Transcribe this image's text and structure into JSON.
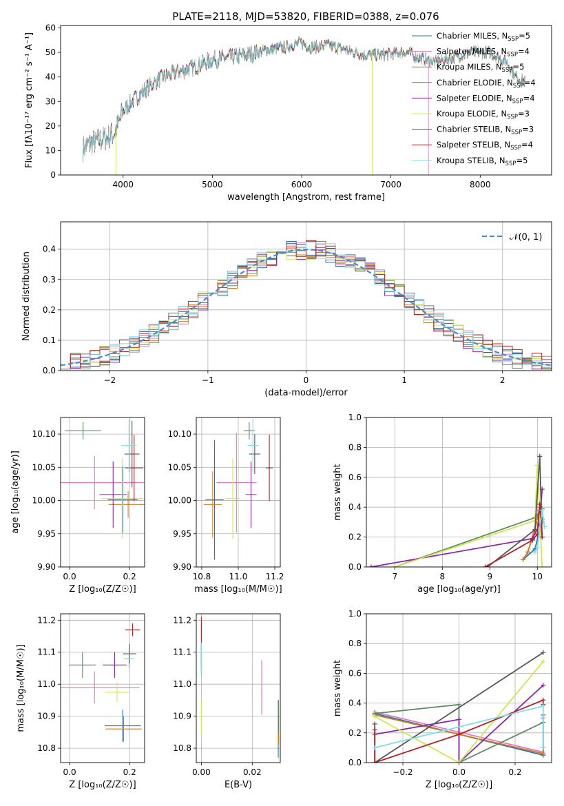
{
  "title": "PLATE=2118, MJD=53820, FIBERID=0388, z=0.076",
  "colors": {
    "chabrier_miles": "#1f77b4",
    "salpeter_miles": "#e377c2",
    "kroupa_miles": "#d47a19",
    "chabrier_elodie": "#5e8a63",
    "salpeter_elodie": "#8e24aa",
    "kroupa_elodie": "#cde84f",
    "chabrier_stelib": "#555555",
    "salpeter_stelib": "#b22222",
    "kroupa_stelib": "#80deea",
    "gauss": "#4a88d0"
  },
  "chart_data": [
    {
      "id": "spectrum",
      "type": "line",
      "title": "PLATE=2118, MJD=53820, FIBERID=0388, z=0.076",
      "xlabel": "wavelength [Angstrom, rest frame]",
      "ylabel": "Flux [f",
      "ylabel_unit": "λ10⁻¹⁷ erg cm⁻² s⁻¹ A⁻¹]",
      "xlim": [
        3300,
        8800
      ],
      "ylim": [
        0,
        61
      ],
      "xticks": [
        "4000",
        "5000",
        "6000",
        "7000",
        "8000"
      ],
      "yticks": [
        "0",
        "10",
        "20",
        "30",
        "40",
        "50",
        "60"
      ],
      "legend_position": "upper-right",
      "legend": [
        {
          "name": "Chabrier MILES, N",
          "sub": "SSP",
          "tail": "=5"
        },
        {
          "name": "Salpeter MILES, N",
          "sub": "SSP",
          "tail": "=4"
        },
        {
          "name": "Kroupa MILES, N",
          "sub": "SSP",
          "tail": "=5"
        },
        {
          "name": "Chabrier ELODIE, N",
          "sub": "SSP",
          "tail": "=4"
        },
        {
          "name": "Salpeter ELODIE, N",
          "sub": "SSP",
          "tail": "=4"
        },
        {
          "name": "Kroupa ELODIE, N",
          "sub": "SSP",
          "tail": "=3"
        },
        {
          "name": "Chabrier STELIB, N",
          "sub": "SSP",
          "tail": "=3"
        },
        {
          "name": "Salpeter STELIB, N",
          "sub": "SSP",
          "tail": "=4"
        },
        {
          "name": "Kroupa STELIB, N",
          "sub": "SSP",
          "tail": "=5"
        }
      ],
      "continuum": {
        "x": [
          3550,
          3650,
          3800,
          3900,
          3950,
          4000,
          4100,
          4250,
          4400,
          4600,
          4800,
          5000,
          5200,
          5400,
          5600,
          5800,
          5900,
          6000,
          6100,
          6300,
          6500,
          6700,
          6900,
          7100,
          7200,
          7300,
          7500,
          7700,
          7900,
          8100,
          8300,
          8400,
          8500
        ],
        "y": [
          11,
          13,
          15,
          17,
          21,
          26,
          30,
          35,
          39,
          42,
          44,
          47,
          48,
          49,
          51,
          52,
          53,
          54,
          52,
          53,
          51,
          49,
          49,
          50,
          50,
          48,
          46,
          48,
          50,
          50,
          46,
          40,
          38
        ]
      }
    },
    {
      "id": "residuals",
      "type": "histogram",
      "xlabel": "(data-model)/error",
      "ylabel": "Normed distribution",
      "xlim": [
        -2.5,
        2.5
      ],
      "ylim": [
        0,
        0.49
      ],
      "xticks": [
        "−2",
        "−1",
        "0",
        "1",
        "2"
      ],
      "yticks": [
        "0.0",
        "0.1",
        "0.2",
        "0.3",
        "0.4"
      ],
      "grid": true,
      "legend_position": "upper-right",
      "reference": {
        "name": "𝒩(0, 1)",
        "type": "normal",
        "mean": 0,
        "sigma": 1
      },
      "bin_width": 0.1
    },
    {
      "id": "age_vs_Z",
      "type": "scatter",
      "xlabel": "Z [log₁₀(Z/Z☉)]",
      "ylabel": "age  [log₁₀(age/yr)]",
      "xlim": [
        -0.03,
        0.25
      ],
      "ylim": [
        9.9,
        10.125
      ],
      "xticks": [
        "0.0",
        "0.2"
      ],
      "yticks": [
        "9.90",
        "9.95",
        "10.00",
        "10.05",
        "10.10"
      ],
      "grid": true,
      "points": [
        {
          "x": 0.177,
          "y": 10.001,
          "xerr": 0.05,
          "yerr": 0.05,
          "color": "chabrier_miles"
        },
        {
          "x": 0.083,
          "y": 10.027,
          "xerr": 0.165,
          "yerr": 0.04,
          "color": "salpeter_miles"
        },
        {
          "x": 0.195,
          "y": 9.994,
          "xerr": 0.065,
          "yerr": 0.02,
          "color": "kroupa_miles"
        },
        {
          "x": 0.045,
          "y": 10.105,
          "xerr": 0.06,
          "yerr": 0.013,
          "color": "chabrier_elodie"
        },
        {
          "x": 0.145,
          "y": 10.009,
          "xerr": 0.045,
          "yerr": 0.05,
          "color": "salpeter_elodie"
        },
        {
          "x": 0.175,
          "y": 10.003,
          "xerr": 0.07,
          "yerr": 0.06,
          "color": "kroupa_elodie"
        },
        {
          "x": 0.208,
          "y": 10.07,
          "xerr": 0.025,
          "yerr": 0.05,
          "color": "chabrier_stelib"
        },
        {
          "x": 0.215,
          "y": 10.049,
          "xerr": 0.03,
          "yerr": 0.05,
          "color": "salpeter_stelib"
        },
        {
          "x": 0.198,
          "y": 10.083,
          "xerr": 0.025,
          "yerr": 0.04,
          "color": "kroupa_stelib"
        }
      ]
    },
    {
      "id": "age_vs_mass",
      "type": "scatter",
      "xlabel": "mass [log₁₀(M/M☉)]",
      "ylabel": "",
      "xlim": [
        10.77,
        11.23
      ],
      "ylim": [
        9.9,
        10.125
      ],
      "xticks": [
        "10.8",
        "11.0",
        "11.2"
      ],
      "yticks": [
        "9.90",
        "9.95",
        "10.00",
        "10.05",
        "10.10"
      ],
      "grid": true,
      "points": [
        {
          "x": 10.87,
          "y": 10.001,
          "xerr": 0.05,
          "yerr": 0.09,
          "color": "chabrier_miles"
        },
        {
          "x": 10.99,
          "y": 10.027,
          "xerr": 0.11,
          "yerr": 0.075,
          "color": "salpeter_miles"
        },
        {
          "x": 10.86,
          "y": 9.994,
          "xerr": 0.05,
          "yerr": 0.05,
          "color": "kroupa_miles"
        },
        {
          "x": 11.06,
          "y": 10.105,
          "xerr": 0.03,
          "yerr": 0.013,
          "color": "chabrier_elodie"
        },
        {
          "x": 11.07,
          "y": 10.009,
          "xerr": 0.03,
          "yerr": 0.05,
          "color": "salpeter_elodie"
        },
        {
          "x": 10.97,
          "y": 10.003,
          "xerr": 0.04,
          "yerr": 0.06,
          "color": "kroupa_elodie"
        },
        {
          "x": 11.09,
          "y": 10.07,
          "xerr": 0.03,
          "yerr": 0.03,
          "color": "chabrier_stelib"
        },
        {
          "x": 11.17,
          "y": 10.049,
          "xerr": 0.02,
          "yerr": 0.05,
          "color": "salpeter_stelib"
        },
        {
          "x": 11.08,
          "y": 10.083,
          "xerr": 0.03,
          "yerr": 0.04,
          "color": "kroupa_stelib"
        }
      ]
    },
    {
      "id": "weight_vs_age",
      "type": "line",
      "xlabel": "age  [log₁₀(age/yr)]",
      "ylabel": "mass weight",
      "xlim": [
        6.4,
        10.3
      ],
      "ylim": [
        0,
        1
      ],
      "xticks": [
        "7",
        "8",
        "9",
        "10"
      ],
      "yticks": [
        "0.0",
        "0.2",
        "0.4",
        "0.6",
        "0.8",
        "1.0"
      ],
      "grid": true,
      "series": [
        {
          "color": "chabrier_miles",
          "x": [
            9.7,
            9.95,
            10.1
          ],
          "y": [
            0.05,
            0.12,
            0.32
          ]
        },
        {
          "color": "salpeter_miles",
          "x": [
            9.8,
            10.05,
            10.1
          ],
          "y": [
            0.1,
            0.38,
            0.3
          ]
        },
        {
          "color": "kroupa_miles",
          "x": [
            9.7,
            9.8,
            9.95,
            10.05,
            10.1
          ],
          "y": [
            0.05,
            0.1,
            0.25,
            0.4,
            0.3
          ]
        },
        {
          "color": "chabrier_elodie",
          "x": [
            7.0,
            9.95,
            10.1
          ],
          "y": [
            0.0,
            0.33,
            0.39
          ]
        },
        {
          "color": "salpeter_elodie",
          "x": [
            6.5,
            9.9,
            10.05,
            10.1
          ],
          "y": [
            0.0,
            0.19,
            0.29,
            0.52
          ]
        },
        {
          "color": "kroupa_elodie",
          "x": [
            7.0,
            9.95,
            10.0,
            10.1
          ],
          "y": [
            0.0,
            0.31,
            0.68,
            0.0
          ]
        },
        {
          "color": "chabrier_stelib",
          "x": [
            8.95,
            9.95,
            10.05,
            10.1
          ],
          "y": [
            0.0,
            0.25,
            0.74,
            0.2
          ]
        },
        {
          "color": "salpeter_stelib",
          "x": [
            8.9,
            9.9,
            10.0,
            10.05,
            10.1
          ],
          "y": [
            0.0,
            0.18,
            0.22,
            0.42,
            0.2
          ]
        },
        {
          "color": "kroupa_stelib",
          "x": [
            9.95,
            10.0,
            10.1,
            10.15
          ],
          "y": [
            0.1,
            0.13,
            0.38,
            0.27
          ]
        }
      ]
    },
    {
      "id": "mass_vs_Z",
      "type": "scatter",
      "xlabel": "Z [log₁₀(Z/Z☉)]",
      "ylabel": "mass [log₁₀(M/M☉)]",
      "xlim": [
        -0.03,
        0.25
      ],
      "ylim": [
        10.755,
        11.22
      ],
      "xticks": [
        "0.0",
        "0.2"
      ],
      "yticks": [
        "10.8",
        "10.9",
        "11.0",
        "11.1",
        "11.2"
      ],
      "grid": true,
      "points": [
        {
          "x": 0.177,
          "y": 10.87,
          "xerr": 0.06,
          "yerr": 0.05,
          "color": "chabrier_miles"
        },
        {
          "x": 0.083,
          "y": 10.99,
          "xerr": 0.15,
          "yerr": 0.05,
          "color": "salpeter_miles"
        },
        {
          "x": 0.18,
          "y": 10.86,
          "xerr": 0.06,
          "yerr": 0.04,
          "color": "kroupa_miles"
        },
        {
          "x": 0.043,
          "y": 11.06,
          "xerr": 0.045,
          "yerr": 0.04,
          "color": "chabrier_elodie"
        },
        {
          "x": 0.15,
          "y": 11.06,
          "xerr": 0.04,
          "yerr": 0.04,
          "color": "salpeter_elodie"
        },
        {
          "x": 0.158,
          "y": 10.975,
          "xerr": 0.04,
          "yerr": 0.03,
          "color": "kroupa_elodie"
        },
        {
          "x": 0.2,
          "y": 11.095,
          "xerr": 0.022,
          "yerr": 0.03,
          "color": "chabrier_stelib"
        },
        {
          "x": 0.21,
          "y": 11.17,
          "xerr": 0.025,
          "yerr": 0.02,
          "color": "salpeter_stelib"
        },
        {
          "x": 0.198,
          "y": 11.08,
          "xerr": 0.018,
          "yerr": 0.03,
          "color": "kroupa_stelib"
        }
      ]
    },
    {
      "id": "mass_vs_ebv",
      "type": "scatter",
      "xlabel": "E(B-V)",
      "ylabel": "",
      "xlim": [
        -0.002,
        0.031
      ],
      "ylim": [
        10.755,
        11.22
      ],
      "xticks": [
        "0.00",
        "0.02"
      ],
      "yticks": [
        "10.8",
        "10.9",
        "11.0",
        "11.1",
        "11.2"
      ],
      "grid": true,
      "points": [
        {
          "x": 0.0302,
          "y": 10.86,
          "xerr": 0,
          "yerr": 0.09,
          "color": "chabrier_miles"
        },
        {
          "x": 0.0237,
          "y": 10.99,
          "xerr": 0,
          "yerr": 0.085,
          "color": "salpeter_miles"
        },
        {
          "x": 0.0303,
          "y": 10.86,
          "xerr": 0,
          "yerr": 0.05,
          "color": "kroupa_miles"
        },
        {
          "x": 0.0303,
          "y": 10.9,
          "xerr": 0,
          "yerr": 0.05,
          "color": "chabrier_elodie"
        },
        {
          "x": 0.0,
          "y": 11.08,
          "xerr": 0,
          "yerr": 0.05,
          "color": "salpeter_elodie"
        },
        {
          "x": 0.0,
          "y": 10.9,
          "xerr": 0,
          "yerr": 0.05,
          "color": "kroupa_elodie"
        },
        {
          "x": 0.0,
          "y": 11.09,
          "xerr": 0,
          "yerr": 0.04,
          "color": "chabrier_stelib"
        },
        {
          "x": 0.0,
          "y": 11.17,
          "xerr": 0,
          "yerr": 0.04,
          "color": "salpeter_stelib"
        },
        {
          "x": 0.0,
          "y": 11.08,
          "xerr": 0,
          "yerr": 0.05,
          "color": "kroupa_stelib"
        }
      ]
    },
    {
      "id": "weight_vs_Z",
      "type": "line",
      "xlabel": "Z [log₁₀(Z/Z☉)]",
      "ylabel": "mass weight",
      "xlim": [
        -0.33,
        0.33
      ],
      "ylim": [
        0,
        1
      ],
      "xticks": [
        "−0.2",
        "0.0",
        "0.2"
      ],
      "yticks": [
        "0.0",
        "0.2",
        "0.4",
        "0.6",
        "0.8",
        "1.0"
      ],
      "grid": true,
      "series": [
        {
          "color": "chabrier_miles",
          "x": [
            -0.3,
            0.3,
            0.3
          ],
          "y": [
            0.33,
            0.05,
            0.32
          ]
        },
        {
          "color": "salpeter_miles",
          "x": [
            -0.3,
            0.3,
            0.3
          ],
          "y": [
            0.34,
            0.07,
            0.3
          ]
        },
        {
          "color": "kroupa_miles",
          "x": [
            -0.3,
            0.3,
            0.3
          ],
          "y": [
            0.32,
            0.06,
            0.1
          ]
        },
        {
          "color": "chabrier_elodie",
          "x": [
            -0.3,
            0.0,
            0.0,
            0.3
          ],
          "y": [
            0.33,
            0.39,
            0.0,
            0.27
          ]
        },
        {
          "color": "salpeter_elodie",
          "x": [
            -0.3,
            0.0,
            0.0,
            0.3
          ],
          "y": [
            0.19,
            0.29,
            0.0,
            0.52
          ]
        },
        {
          "color": "kroupa_elodie",
          "x": [
            -0.3,
            0.0,
            0.3
          ],
          "y": [
            0.31,
            0.0,
            0.68
          ]
        },
        {
          "color": "chabrier_stelib",
          "x": [
            -0.3,
            -0.3,
            0.3
          ],
          "y": [
            0.26,
            0.0,
            0.74
          ]
        },
        {
          "color": "salpeter_stelib",
          "x": [
            -0.3,
            -0.3,
            0.0,
            0.3,
            0.3
          ],
          "y": [
            0.22,
            0.0,
            0.19,
            0.42,
            0.39
          ]
        },
        {
          "color": "kroupa_stelib",
          "x": [
            -0.3,
            0.3,
            0.3
          ],
          "y": [
            0.1,
            0.38,
            0.1
          ]
        }
      ]
    }
  ]
}
